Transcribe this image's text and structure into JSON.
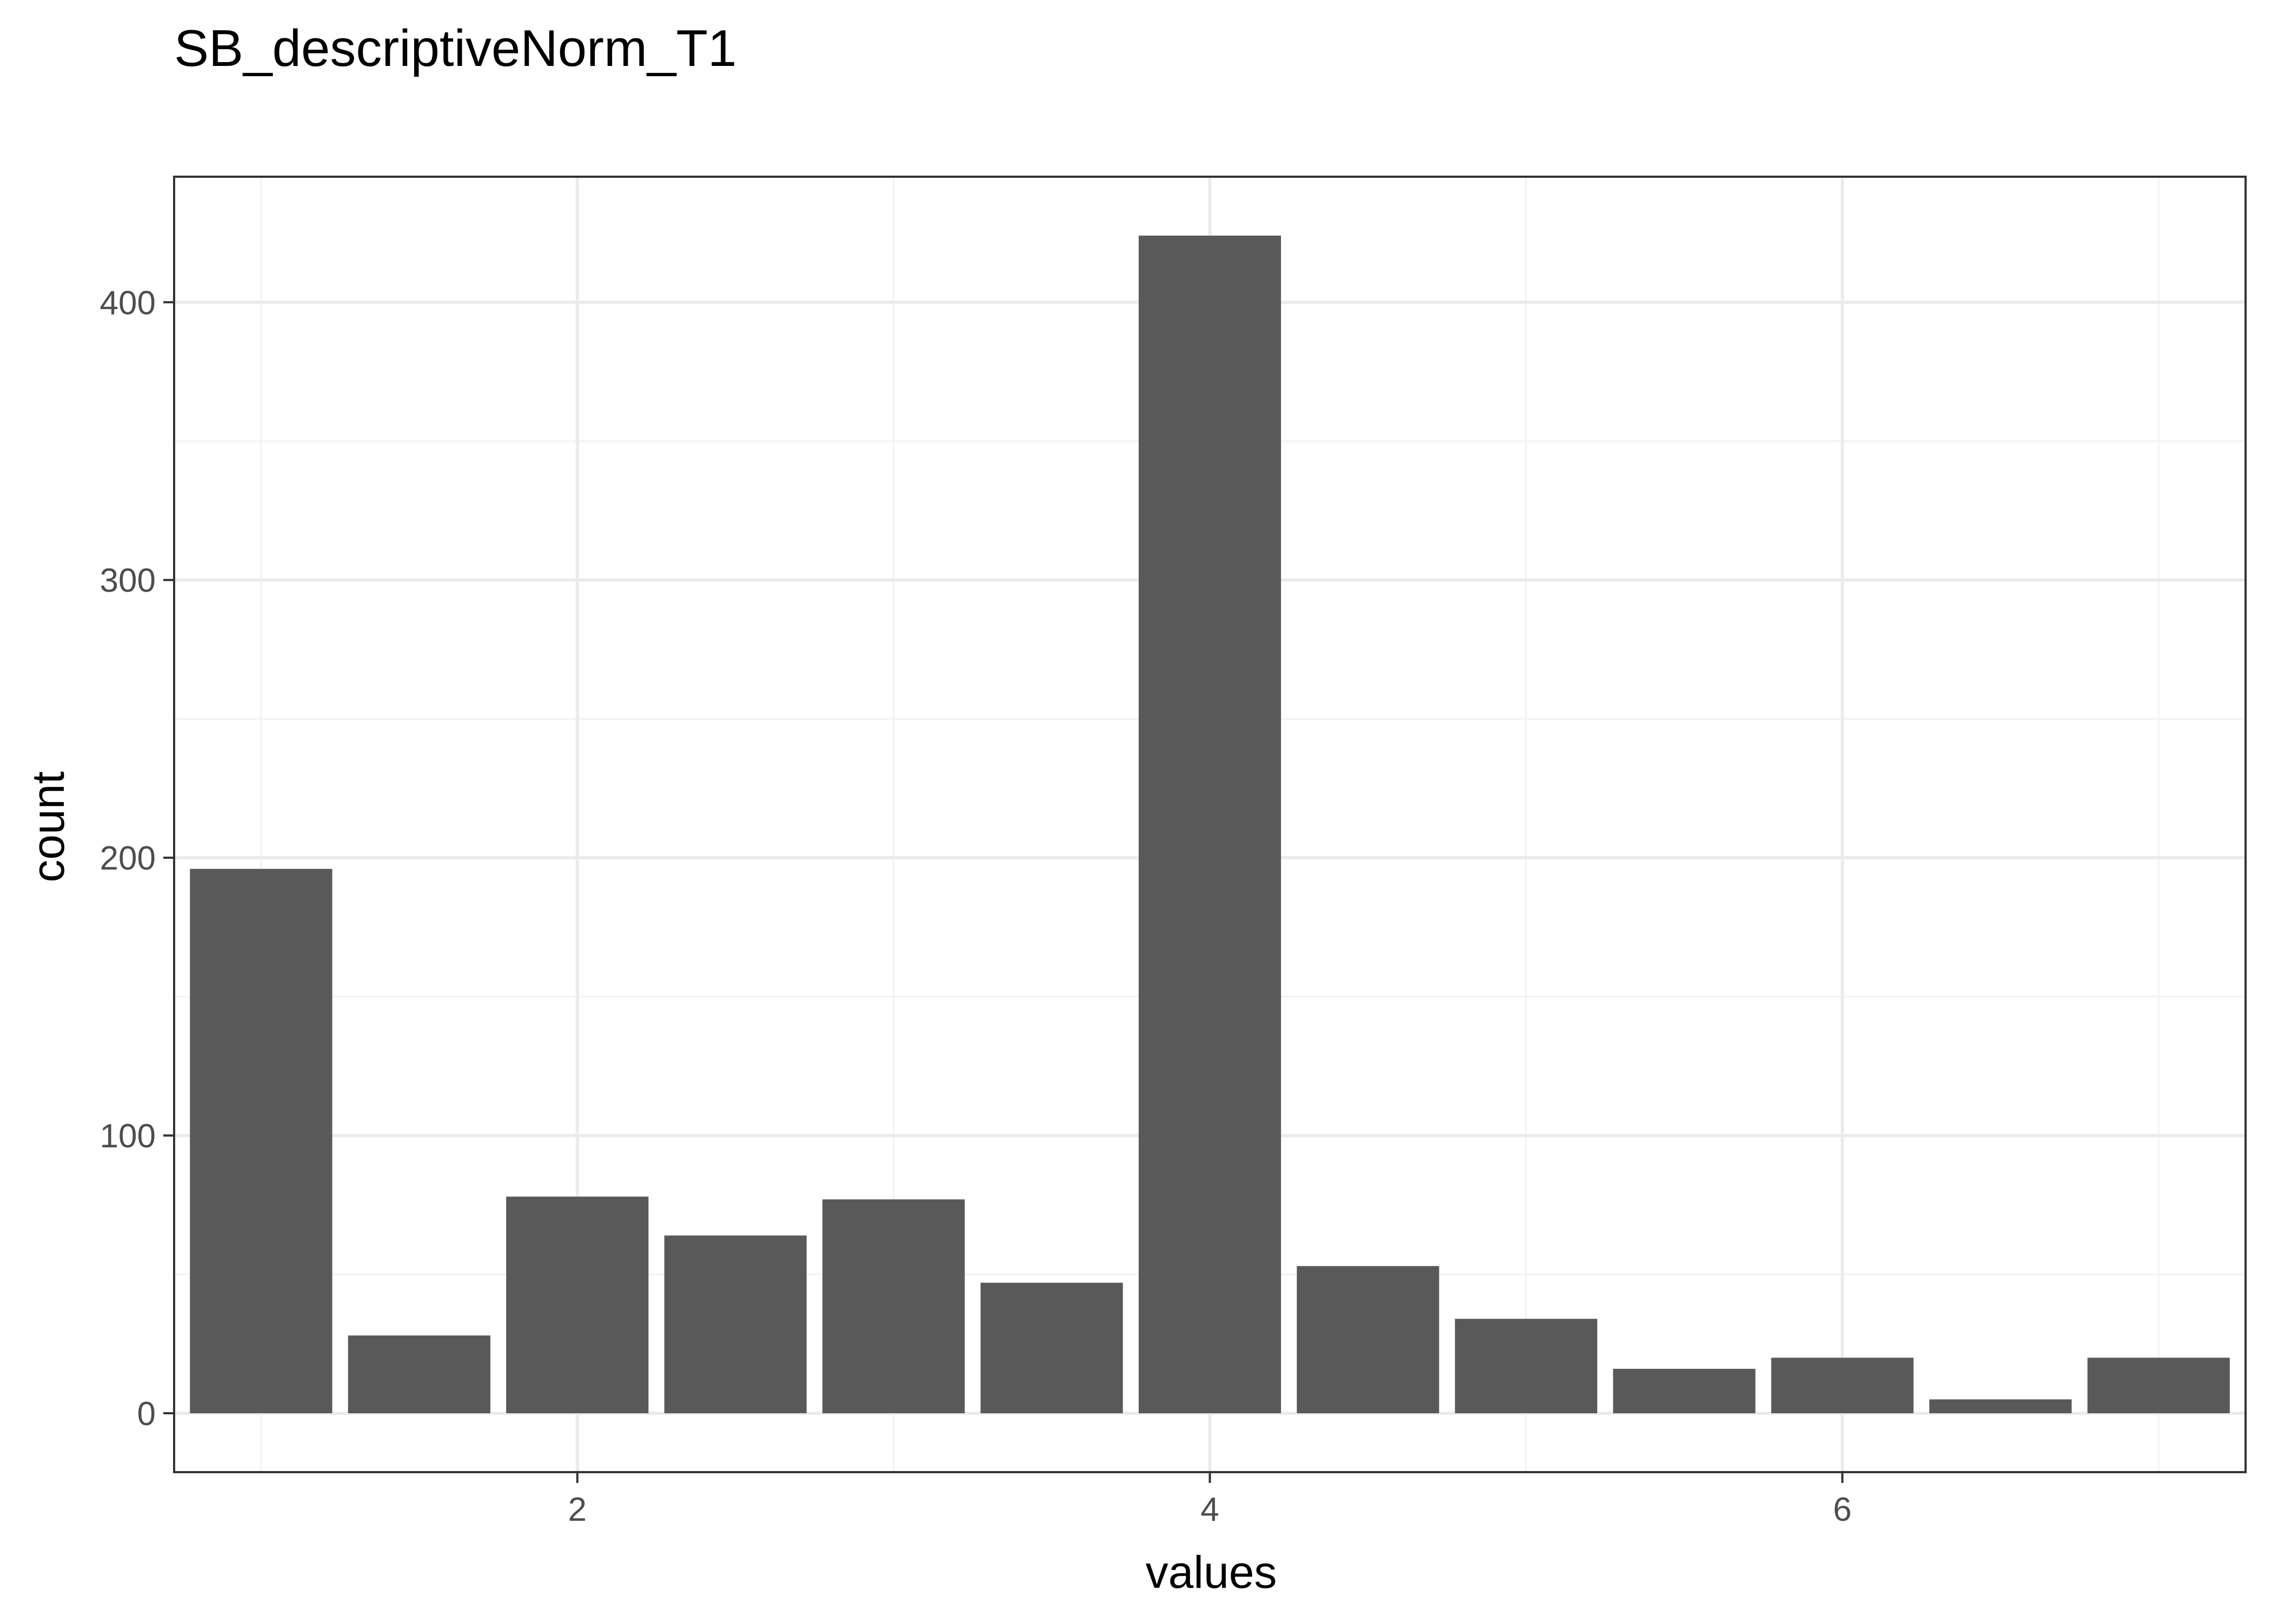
{
  "chart_data": {
    "type": "bar",
    "title": "SB_descriptiveNorm_T1",
    "xlabel": "values",
    "ylabel": "count",
    "x": [
      1.0,
      1.5,
      2.0,
      2.5,
      3.0,
      3.5,
      4.0,
      4.5,
      5.0,
      5.5,
      6.0,
      6.5,
      7.0
    ],
    "values": [
      196,
      28,
      78,
      64,
      77,
      47,
      424,
      53,
      34,
      16,
      20,
      5,
      20
    ],
    "bar_width": 0.45,
    "xlim": [
      0.725,
      7.275
    ],
    "ylim": [
      -21.2,
      445.2
    ],
    "x_ticks": [
      2,
      4,
      6
    ],
    "y_ticks": [
      0,
      100,
      200,
      300,
      400
    ],
    "grid": true,
    "legend": "none",
    "bar_color": "#595959"
  }
}
